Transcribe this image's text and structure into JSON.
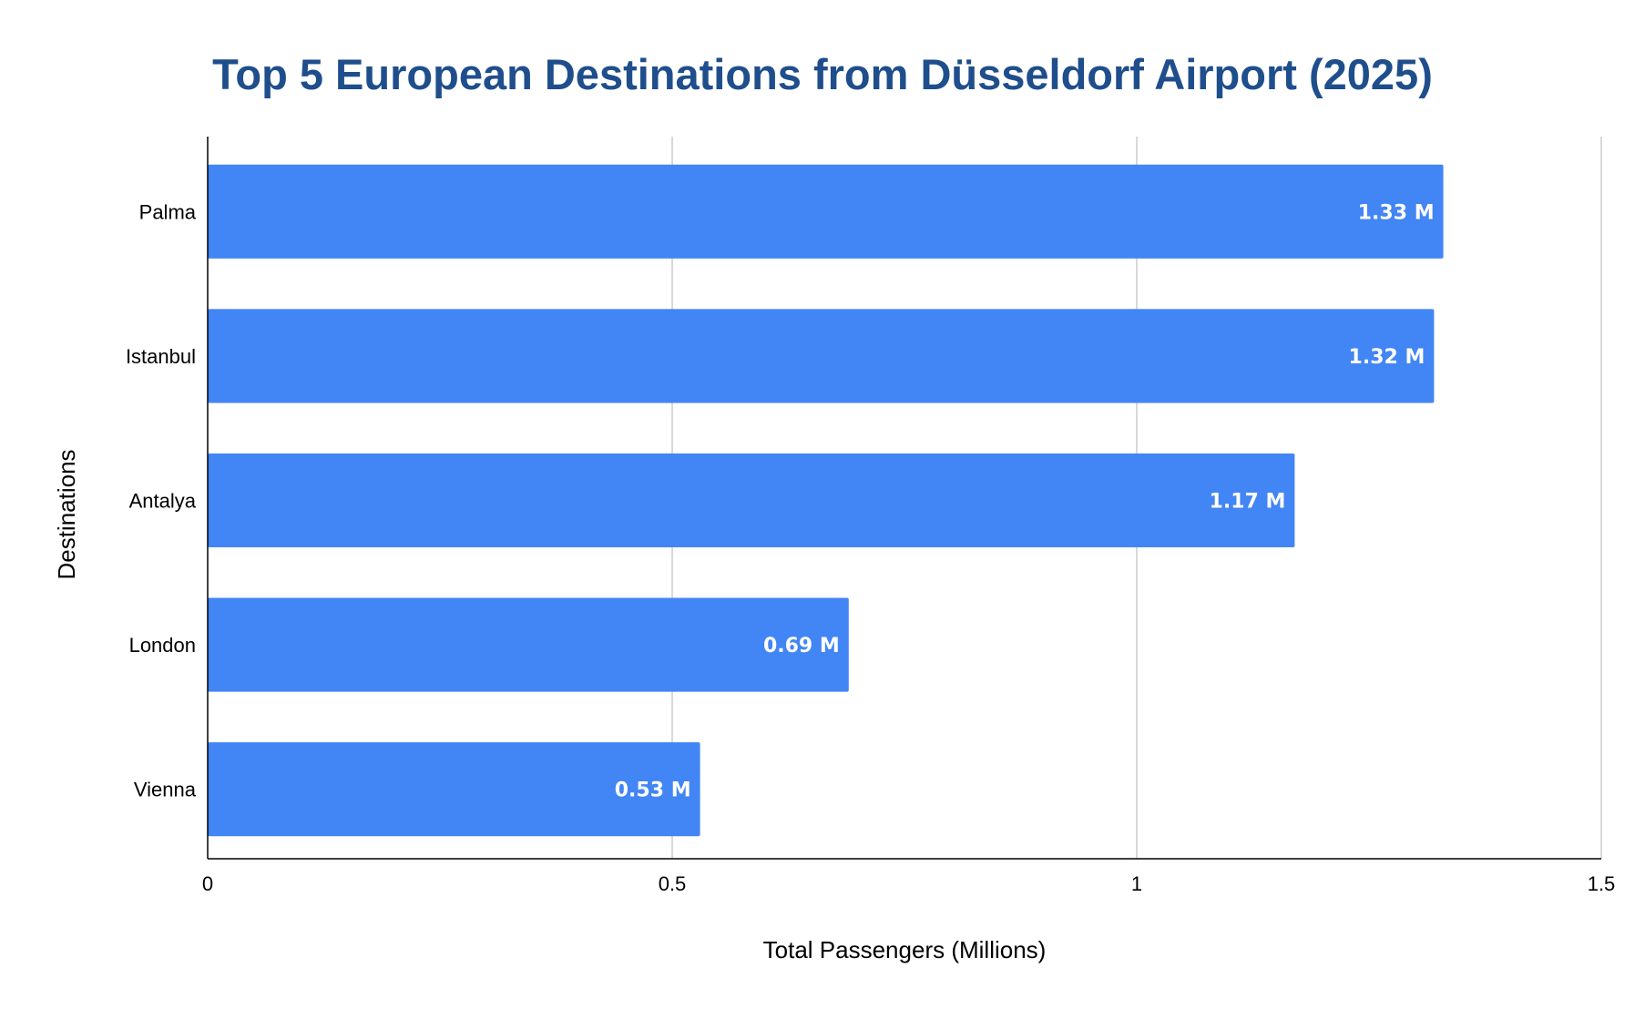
{
  "chart_data": {
    "type": "bar",
    "orientation": "horizontal",
    "title": "Top 5 European Destinations from Düsseldorf Airport (2025)",
    "xlabel": "Total Passengers (Millions)",
    "ylabel": "Destinations",
    "categories": [
      "Palma",
      "Istanbul",
      "Antalya",
      "London",
      "Vienna"
    ],
    "values": [
      1.33,
      1.32,
      1.17,
      0.69,
      0.53
    ],
    "data_labels": [
      "1.33 M",
      "1.32 M",
      "1.17 M",
      "0.69 M",
      "0.53 M"
    ],
    "xlim": [
      0,
      1.5
    ],
    "xticks": [
      0,
      0.5,
      1,
      1.5
    ],
    "xtick_labels": [
      "0",
      "0.5",
      "1",
      "1.5"
    ],
    "grid": true,
    "legend": "none",
    "colors": {
      "bar": "#4285F4",
      "title": "#1F4E8C",
      "grid": "#CCCCCC",
      "axis": "#000000",
      "data_label": "#FFFFFF"
    }
  }
}
